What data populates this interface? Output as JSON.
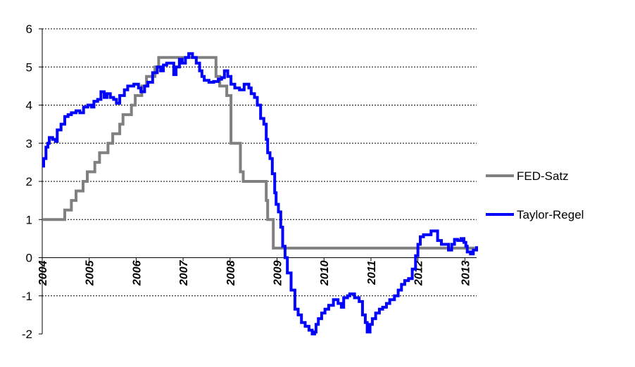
{
  "chart_data": {
    "type": "line",
    "title": "",
    "xlabel": "",
    "ylabel": "",
    "xlim": [
      2004.0,
      2013.25
    ],
    "ylim": [
      -2,
      6
    ],
    "y_ticks": [
      "-2",
      "-1",
      "0",
      "1",
      "2",
      "3",
      "4",
      "5",
      "6"
    ],
    "x_ticks": [
      "2004",
      "2005",
      "2006",
      "2007",
      "2008",
      "2009",
      "2010",
      "2011",
      "2012",
      "2013"
    ],
    "grid": "horizontal-dashed",
    "legend_position": "right",
    "series": [
      {
        "name": "FED-Satz",
        "color": "#808080",
        "step": true,
        "points": [
          [
            2004.0,
            1.0
          ],
          [
            2004.48,
            1.25
          ],
          [
            2004.62,
            1.5
          ],
          [
            2004.72,
            1.75
          ],
          [
            2004.87,
            2.0
          ],
          [
            2004.96,
            2.25
          ],
          [
            2005.12,
            2.5
          ],
          [
            2005.22,
            2.75
          ],
          [
            2005.4,
            3.0
          ],
          [
            2005.5,
            3.25
          ],
          [
            2005.65,
            3.5
          ],
          [
            2005.72,
            3.75
          ],
          [
            2005.9,
            4.0
          ],
          [
            2005.98,
            4.25
          ],
          [
            2006.12,
            4.5
          ],
          [
            2006.22,
            4.75
          ],
          [
            2006.4,
            5.0
          ],
          [
            2006.48,
            5.25
          ],
          [
            2007.7,
            4.75
          ],
          [
            2007.78,
            4.5
          ],
          [
            2007.93,
            4.25
          ],
          [
            2008.02,
            3.0
          ],
          [
            2008.22,
            2.25
          ],
          [
            2008.28,
            2.0
          ],
          [
            2008.77,
            1.5
          ],
          [
            2008.8,
            1.0
          ],
          [
            2008.92,
            0.25
          ],
          [
            2013.25,
            0.25
          ]
        ]
      },
      {
        "name": "Taylor-Regel",
        "color": "#0000FF",
        "step": true,
        "points": [
          [
            2004.0,
            2.4
          ],
          [
            2004.03,
            2.6
          ],
          [
            2004.08,
            2.9
          ],
          [
            2004.12,
            3.0
          ],
          [
            2004.15,
            3.15
          ],
          [
            2004.22,
            3.1
          ],
          [
            2004.28,
            3.05
          ],
          [
            2004.32,
            3.35
          ],
          [
            2004.4,
            3.5
          ],
          [
            2004.48,
            3.7
          ],
          [
            2004.55,
            3.75
          ],
          [
            2004.62,
            3.8
          ],
          [
            2004.72,
            3.85
          ],
          [
            2004.8,
            3.8
          ],
          [
            2004.88,
            3.95
          ],
          [
            2004.97,
            4.0
          ],
          [
            2005.05,
            3.95
          ],
          [
            2005.1,
            4.1
          ],
          [
            2005.18,
            4.15
          ],
          [
            2005.25,
            4.35
          ],
          [
            2005.32,
            4.2
          ],
          [
            2005.38,
            4.3
          ],
          [
            2005.45,
            4.2
          ],
          [
            2005.52,
            4.15
          ],
          [
            2005.58,
            4.05
          ],
          [
            2005.65,
            4.25
          ],
          [
            2005.75,
            4.4
          ],
          [
            2005.82,
            4.5
          ],
          [
            2005.95,
            4.55
          ],
          [
            2006.05,
            4.45
          ],
          [
            2006.1,
            4.35
          ],
          [
            2006.18,
            4.5
          ],
          [
            2006.25,
            4.6
          ],
          [
            2006.35,
            4.85
          ],
          [
            2006.45,
            5.0
          ],
          [
            2006.52,
            4.9
          ],
          [
            2006.58,
            5.05
          ],
          [
            2006.65,
            5.1
          ],
          [
            2006.75,
            5.1
          ],
          [
            2006.8,
            4.8
          ],
          [
            2006.85,
            5.0
          ],
          [
            2006.92,
            5.2
          ],
          [
            2006.98,
            5.1
          ],
          [
            2007.05,
            5.25
          ],
          [
            2007.12,
            5.35
          ],
          [
            2007.2,
            5.25
          ],
          [
            2007.28,
            5.1
          ],
          [
            2007.35,
            4.9
          ],
          [
            2007.4,
            4.75
          ],
          [
            2007.45,
            4.65
          ],
          [
            2007.55,
            4.6
          ],
          [
            2007.65,
            4.62
          ],
          [
            2007.75,
            4.68
          ],
          [
            2007.82,
            4.72
          ],
          [
            2007.88,
            4.9
          ],
          [
            2007.95,
            4.75
          ],
          [
            2008.02,
            4.55
          ],
          [
            2008.1,
            4.45
          ],
          [
            2008.2,
            4.4
          ],
          [
            2008.3,
            4.55
          ],
          [
            2008.4,
            4.45
          ],
          [
            2008.45,
            4.3
          ],
          [
            2008.52,
            4.2
          ],
          [
            2008.58,
            4.0
          ],
          [
            2008.65,
            3.65
          ],
          [
            2008.72,
            3.5
          ],
          [
            2008.77,
            3.1
          ],
          [
            2008.8,
            2.75
          ],
          [
            2008.85,
            2.6
          ],
          [
            2008.9,
            2.2
          ],
          [
            2008.95,
            1.7
          ],
          [
            2008.98,
            1.4
          ],
          [
            2009.03,
            1.2
          ],
          [
            2009.08,
            0.8
          ],
          [
            2009.12,
            0.3
          ],
          [
            2009.17,
            0.0
          ],
          [
            2009.22,
            -0.4
          ],
          [
            2009.3,
            -0.85
          ],
          [
            2009.38,
            -1.35
          ],
          [
            2009.45,
            -1.5
          ],
          [
            2009.52,
            -1.7
          ],
          [
            2009.6,
            -1.8
          ],
          [
            2009.68,
            -1.9
          ],
          [
            2009.75,
            -2.0
          ],
          [
            2009.8,
            -1.95
          ],
          [
            2009.83,
            -1.75
          ],
          [
            2009.88,
            -1.6
          ],
          [
            2009.95,
            -1.45
          ],
          [
            2010.02,
            -1.35
          ],
          [
            2010.1,
            -1.25
          ],
          [
            2010.2,
            -1.1
          ],
          [
            2010.3,
            -1.2
          ],
          [
            2010.37,
            -1.3
          ],
          [
            2010.42,
            -1.05
          ],
          [
            2010.5,
            -1.0
          ],
          [
            2010.55,
            -0.95
          ],
          [
            2010.65,
            -1.05
          ],
          [
            2010.75,
            -1.15
          ],
          [
            2010.82,
            -1.5
          ],
          [
            2010.88,
            -1.7
          ],
          [
            2010.92,
            -1.95
          ],
          [
            2010.98,
            -1.75
          ],
          [
            2011.03,
            -1.6
          ],
          [
            2011.1,
            -1.45
          ],
          [
            2011.18,
            -1.35
          ],
          [
            2011.25,
            -1.3
          ],
          [
            2011.33,
            -1.2
          ],
          [
            2011.4,
            -1.1
          ],
          [
            2011.5,
            -1.0
          ],
          [
            2011.58,
            -0.85
          ],
          [
            2011.65,
            -0.7
          ],
          [
            2011.72,
            -0.6
          ],
          [
            2011.8,
            -0.55
          ],
          [
            2011.88,
            -0.3
          ],
          [
            2011.95,
            0.05
          ],
          [
            2012.0,
            0.35
          ],
          [
            2012.05,
            0.55
          ],
          [
            2012.12,
            0.6
          ],
          [
            2012.2,
            0.6
          ],
          [
            2012.28,
            0.7
          ],
          [
            2012.35,
            0.7
          ],
          [
            2012.42,
            0.45
          ],
          [
            2012.5,
            0.35
          ],
          [
            2012.58,
            0.35
          ],
          [
            2012.65,
            0.2
          ],
          [
            2012.72,
            0.35
          ],
          [
            2012.78,
            0.48
          ],
          [
            2012.85,
            0.45
          ],
          [
            2012.92,
            0.5
          ],
          [
            2012.98,
            0.4
          ],
          [
            2013.02,
            0.3
          ],
          [
            2013.05,
            0.15
          ],
          [
            2013.12,
            0.1
          ],
          [
            2013.18,
            0.2
          ],
          [
            2013.25,
            0.3
          ]
        ]
      }
    ]
  }
}
